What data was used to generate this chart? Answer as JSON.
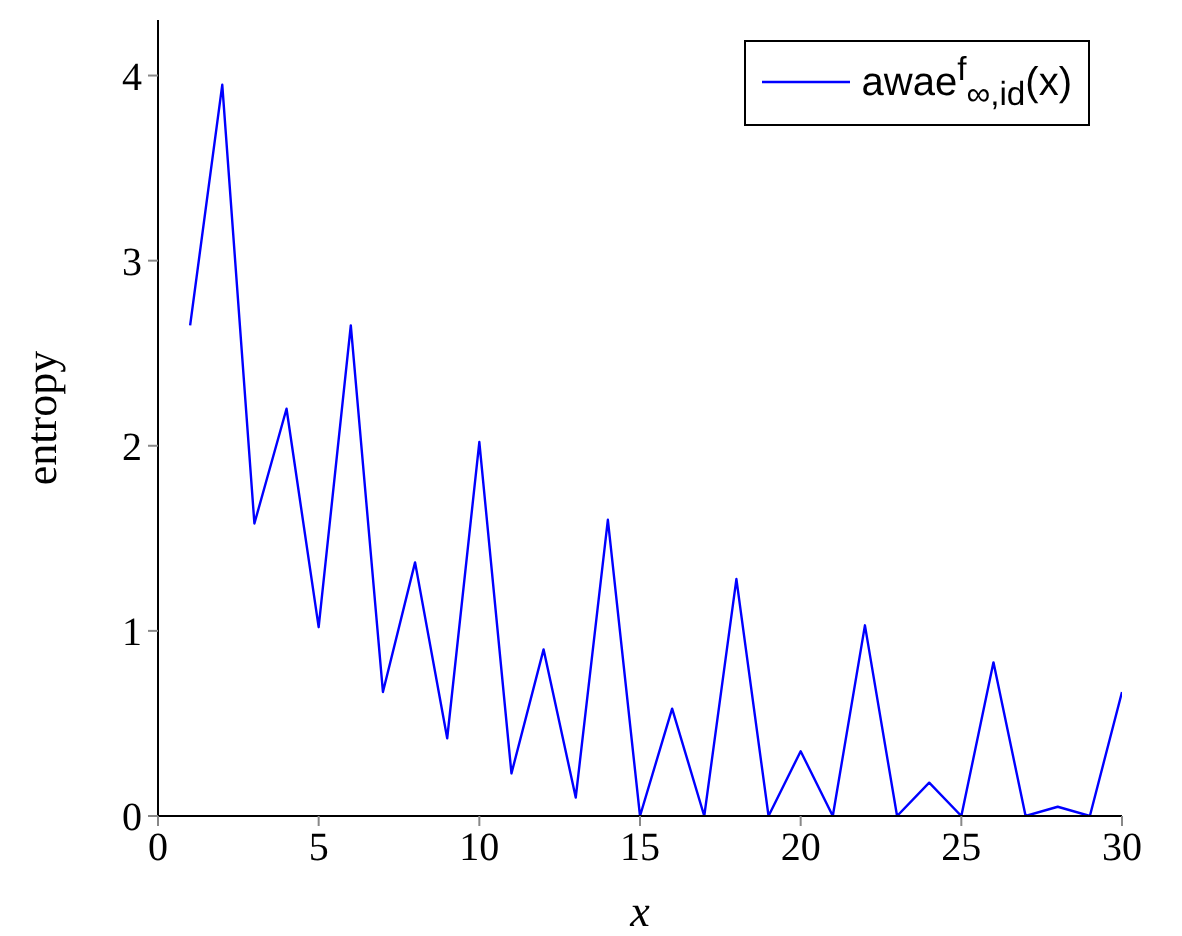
{
  "chart_data": {
    "type": "line",
    "xlabel": "x",
    "ylabel": "entropy",
    "x": [
      1,
      2,
      3,
      4,
      5,
      6,
      7,
      8,
      9,
      10,
      11,
      12,
      13,
      14,
      15,
      16,
      17,
      18,
      19,
      20,
      21,
      22,
      23,
      24,
      25,
      26,
      27,
      28,
      29,
      30
    ],
    "series": [
      {
        "name": "awae$^{f}$$_{∞,id}$(x)",
        "color": "#0000ff",
        "values": [
          2.65,
          3.95,
          1.58,
          2.2,
          1.02,
          2.65,
          0.67,
          1.37,
          0.42,
          2.02,
          0.23,
          0.9,
          0.1,
          1.6,
          0,
          0.58,
          0,
          1.28,
          0,
          0.35,
          0,
          1.03,
          0,
          0.18,
          0,
          0.83,
          0,
          0.05,
          0,
          0.67
        ]
      }
    ],
    "xlim": [
      0,
      30
    ],
    "xticks": [
      0,
      5,
      10,
      15,
      20,
      25,
      30
    ],
    "ylim": [
      0,
      4.3
    ],
    "yticks": [
      0,
      1,
      2,
      3,
      4
    ],
    "grid": false,
    "legend": "top right",
    "marker": "none",
    "line_style": "solid"
  }
}
